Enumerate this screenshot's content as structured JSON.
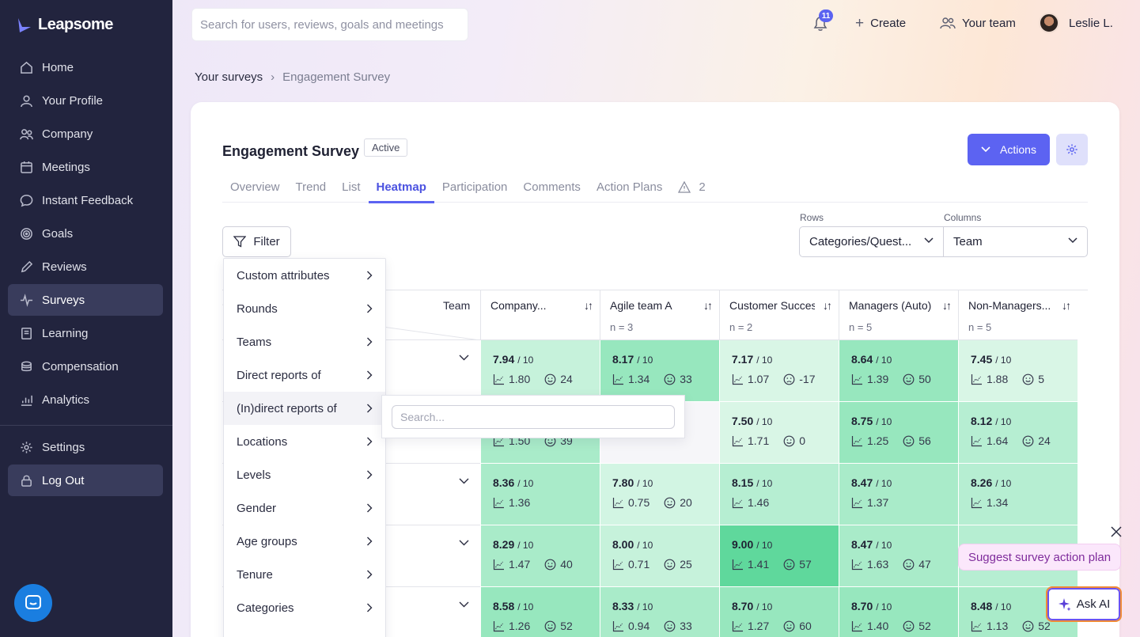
{
  "app": {
    "brand": "Leapsome"
  },
  "sidebar": {
    "items": [
      {
        "label": "Home",
        "icon": "home-icon"
      },
      {
        "label": "Your Profile",
        "icon": "user-icon"
      },
      {
        "label": "Company",
        "icon": "users-icon"
      },
      {
        "label": "Meetings",
        "icon": "calendar-icon"
      },
      {
        "label": "Instant Feedback",
        "icon": "chat-icon"
      },
      {
        "label": "Goals",
        "icon": "target-icon"
      },
      {
        "label": "Reviews",
        "icon": "pencil-icon"
      },
      {
        "label": "Surveys",
        "icon": "pulse-icon",
        "active": true
      },
      {
        "label": "Learning",
        "icon": "book-icon"
      },
      {
        "label": "Compensation",
        "icon": "money-icon"
      },
      {
        "label": "Analytics",
        "icon": "chart-icon"
      }
    ],
    "settings": "Settings",
    "logout": "Log Out"
  },
  "topbar": {
    "search_placeholder": "Search for users, reviews, goals and meetings",
    "notification_count": "11",
    "create": "Create",
    "your_team": "Your team",
    "user_name": "Leslie L."
  },
  "breadcrumb": {
    "parent": "Your surveys",
    "current": "Engagement Survey"
  },
  "survey": {
    "title": "Engagement Survey",
    "status": "Active",
    "actions": "Actions",
    "tabs": [
      "Overview",
      "Trend",
      "List",
      "Heatmap",
      "Participation",
      "Comments",
      "Action Plans"
    ],
    "active_tab": "Heatmap",
    "warning_count": "2"
  },
  "controls": {
    "filter": "Filter",
    "rows_label": "Rows",
    "rows_value": "Categories/Quest...",
    "columns_label": "Columns",
    "columns_value": "Team"
  },
  "filter_menu": {
    "items": [
      "Custom attributes",
      "Rounds",
      "Teams",
      "Direct reports of",
      "(In)direct reports of",
      "Locations",
      "Levels",
      "Gender",
      "Age groups",
      "Tenure",
      "Categories"
    ],
    "highlighted": "(In)direct reports of",
    "submenu_placeholder": "Search..."
  },
  "heatmap": {
    "corner_label": "Team",
    "denominator": "/ 10",
    "columns": [
      {
        "name": "Company...",
        "n": ""
      },
      {
        "name": "Agile team A",
        "n": "n = 3"
      },
      {
        "name": "Customer Success",
        "n": "n = 2"
      },
      {
        "name": "Managers (Auto)",
        "n": "n = 5"
      },
      {
        "name": "Non-Managers...",
        "n": "n = 5"
      }
    ],
    "rows": [
      [
        {
          "score": "7.94",
          "sd": "1.80",
          "nps": "24",
          "color": "#c6f2db"
        },
        {
          "score": "8.17",
          "sd": "1.34",
          "nps": "33",
          "color": "#97e7be"
        },
        {
          "score": "7.17",
          "sd": "1.07",
          "nps": "-17",
          "color": "#d9f6e6",
          "sad": true
        },
        {
          "score": "8.64",
          "sd": "1.39",
          "nps": "50",
          "color": "#97e7be"
        },
        {
          "score": "7.45",
          "sd": "1.88",
          "nps": "5",
          "color": "#d9f6e6"
        }
      ],
      [
        {
          "score": "",
          "sd": "1.50",
          "nps": "39",
          "color": "#a9ebc9"
        },
        {
          "score": "",
          "sd": "",
          "nps": "",
          "color": "#f6f6f9"
        },
        {
          "score": "7.50",
          "sd": "1.71",
          "nps": "0",
          "color": "#d9f6e6"
        },
        {
          "score": "8.75",
          "sd": "1.25",
          "nps": "56",
          "color": "#97e7be"
        },
        {
          "score": "8.12",
          "sd": "1.64",
          "nps": "24",
          "color": "#b6eed2"
        }
      ],
      [
        {
          "score": "8.36",
          "sd": "1.36",
          "nps": "",
          "color": "#a9ebc9"
        },
        {
          "score": "7.80",
          "sd": "0.75",
          "nps": "20",
          "color": "#d2f5e3"
        },
        {
          "score": "8.15",
          "sd": "1.46",
          "nps": "",
          "color": "#b6eed2"
        },
        {
          "score": "8.47",
          "sd": "1.37",
          "nps": "",
          "color": "#a9ebc9"
        },
        {
          "score": "8.26",
          "sd": "1.34",
          "nps": "",
          "color": "#b6eed2"
        }
      ],
      [
        {
          "score": "8.29",
          "sd": "1.47",
          "nps": "40",
          "color": "#a9ebc9"
        },
        {
          "score": "8.00",
          "sd": "0.71",
          "nps": "25",
          "color": "#c6f2db"
        },
        {
          "score": "9.00",
          "sd": "1.41",
          "nps": "57",
          "color": "#5fd89c"
        },
        {
          "score": "8.47",
          "sd": "1.63",
          "nps": "47",
          "color": "#a9ebc9"
        },
        {
          "score": "",
          "sd": "",
          "nps": "",
          "color": "#b6eed2"
        }
      ],
      [
        {
          "score": "8.58",
          "sd": "1.26",
          "nps": "52",
          "color": "#97e7be"
        },
        {
          "score": "8.33",
          "sd": "0.94",
          "nps": "33",
          "color": "#a9ebc9"
        },
        {
          "score": "8.70",
          "sd": "1.27",
          "nps": "60",
          "color": "#97e7be"
        },
        {
          "score": "8.70",
          "sd": "1.40",
          "nps": "52",
          "color": "#97e7be"
        },
        {
          "score": "8.48",
          "sd": "1.13",
          "nps": "52",
          "color": "#a9ebc9"
        }
      ]
    ]
  },
  "ai": {
    "suggest": "Suggest survey action plan",
    "ask": "Ask AI"
  }
}
